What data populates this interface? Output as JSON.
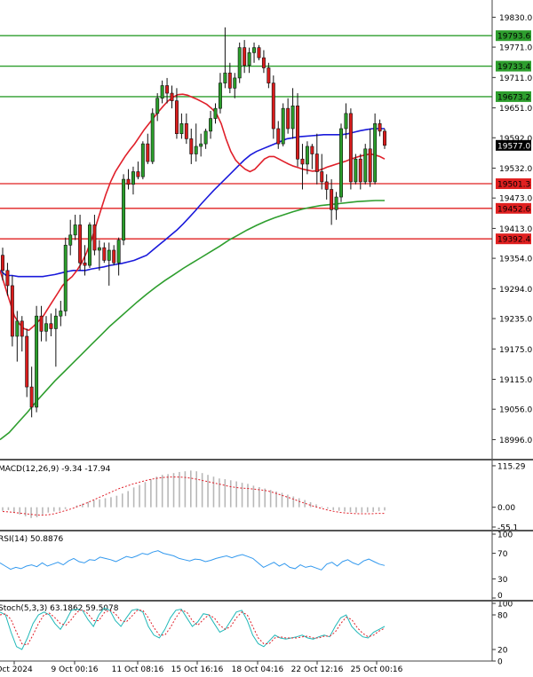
{
  "chart_data": {
    "type": "candlestick",
    "x_tick_labels": [
      "Oct 2024",
      "9 Oct 00:16",
      "11 Oct 08:16",
      "15 Oct 16:16",
      "18 Oct 04:16",
      "22 Oct 12:16",
      "25 Oct 00:16"
    ],
    "main": {
      "ylim": [
        18960,
        19850
      ],
      "y_tick_labels": [
        "19830.0",
        "19771.0",
        "19711.0",
        "19651.0",
        "19592.0",
        "19532.0",
        "19473.0",
        "19413.0",
        "19354.0",
        "19294.0",
        "19235.0",
        "19175.0",
        "19115.0",
        "19056.0",
        "18996.0"
      ],
      "levels": [
        {
          "value": 19793.6,
          "label": "19793.6",
          "color": "#2e9e2e"
        },
        {
          "value": 19733.4,
          "label": "19733.4",
          "color": "#2e9e2e"
        },
        {
          "value": 19673.2,
          "label": "19673.2",
          "color": "#2e9e2e"
        },
        {
          "value": 19501.3,
          "label": "19501.3",
          "color": "#e02020"
        },
        {
          "value": 19452.6,
          "label": "19452.6",
          "color": "#e02020"
        },
        {
          "value": 19392.4,
          "label": "19392.4",
          "color": "#e02020"
        }
      ],
      "current_price": {
        "value": 19577.0,
        "label": "19577.0"
      },
      "candles": [
        [
          19360,
          19375,
          19310,
          19330
        ],
        [
          19330,
          19345,
          19280,
          19300
        ],
        [
          19300,
          19320,
          19180,
          19200
        ],
        [
          19200,
          19250,
          19150,
          19230
        ],
        [
          19230,
          19240,
          19170,
          19200
        ],
        [
          19200,
          19215,
          19080,
          19100
        ],
        [
          19100,
          19140,
          19040,
          19060
        ],
        [
          19060,
          19260,
          19050,
          19240
        ],
        [
          19240,
          19260,
          19190,
          19210
        ],
        [
          19210,
          19240,
          19190,
          19225
        ],
        [
          19225,
          19245,
          19200,
          19215
        ],
        [
          19215,
          19255,
          19140,
          19240
        ],
        [
          19240,
          19270,
          19220,
          19250
        ],
        [
          19250,
          19395,
          19240,
          19380
        ],
        [
          19380,
          19430,
          19360,
          19400
        ],
        [
          19400,
          19440,
          19390,
          19420
        ],
        [
          19420,
          19440,
          19330,
          19345
        ],
        [
          19345,
          19380,
          19320,
          19340
        ],
        [
          19340,
          19425,
          19335,
          19420
        ],
        [
          19420,
          19440,
          19360,
          19370
        ],
        [
          19370,
          19390,
          19330,
          19375
        ],
        [
          19375,
          19385,
          19345,
          19350
        ],
        [
          19350,
          19385,
          19300,
          19370
        ],
        [
          19370,
          19380,
          19340,
          19345
        ],
        [
          19345,
          19395,
          19320,
          19390
        ],
        [
          19390,
          19520,
          19380,
          19510
        ],
        [
          19510,
          19530,
          19490,
          19500
        ],
        [
          19500,
          19535,
          19480,
          19525
        ],
        [
          19525,
          19545,
          19510,
          19515
        ],
        [
          19515,
          19585,
          19510,
          19580
        ],
        [
          19580,
          19600,
          19540,
          19545
        ],
        [
          19545,
          19650,
          19540,
          19640
        ],
        [
          19640,
          19680,
          19625,
          19670
        ],
        [
          19670,
          19705,
          19660,
          19695
        ],
        [
          19695,
          19710,
          19660,
          19680
        ],
        [
          19680,
          19695,
          19650,
          19665
        ],
        [
          19665,
          19690,
          19590,
          19600
        ],
        [
          19600,
          19640,
          19590,
          19620
        ],
        [
          19620,
          19640,
          19580,
          19590
        ],
        [
          19590,
          19610,
          19540,
          19560
        ],
        [
          19560,
          19620,
          19545,
          19575
        ],
        [
          19575,
          19600,
          19555,
          19580
        ],
        [
          19580,
          19610,
          19570,
          19605
        ],
        [
          19605,
          19645,
          19590,
          19630
        ],
        [
          19630,
          19660,
          19620,
          19650
        ],
        [
          19650,
          19720,
          19640,
          19700
        ],
        [
          19700,
          19810,
          19690,
          19720
        ],
        [
          19720,
          19740,
          19680,
          19690
        ],
        [
          19690,
          19720,
          19670,
          19710
        ],
        [
          19710,
          19780,
          19700,
          19770
        ],
        [
          19770,
          19785,
          19720,
          19735
        ],
        [
          19735,
          19770,
          19720,
          19760
        ],
        [
          19760,
          19780,
          19740,
          19770
        ],
        [
          19770,
          19775,
          19745,
          19750
        ],
        [
          19750,
          19765,
          19720,
          19730
        ],
        [
          19730,
          19740,
          19690,
          19700
        ],
        [
          19700,
          19715,
          19590,
          19610
        ],
        [
          19610,
          19625,
          19570,
          19580
        ],
        [
          19580,
          19660,
          19575,
          19650
        ],
        [
          19650,
          19670,
          19600,
          19610
        ],
        [
          19610,
          19690,
          19590,
          19655
        ],
        [
          19655,
          19680,
          19535,
          19550
        ],
        [
          19550,
          19580,
          19490,
          19540
        ],
        [
          19540,
          19585,
          19520,
          19575
        ],
        [
          19575,
          19580,
          19530,
          19560
        ],
        [
          19560,
          19600,
          19500,
          19525
        ],
        [
          19525,
          19560,
          19490,
          19505
        ],
        [
          19505,
          19520,
          19470,
          19490
        ],
        [
          19490,
          19510,
          19420,
          19450
        ],
        [
          19450,
          19485,
          19430,
          19475
        ],
        [
          19475,
          19620,
          19465,
          19610
        ],
        [
          19610,
          19660,
          19590,
          19640
        ],
        [
          19640,
          19650,
          19490,
          19505
        ],
        [
          19505,
          19560,
          19500,
          19550
        ],
        [
          19550,
          19560,
          19490,
          19505
        ],
        [
          19505,
          19580,
          19500,
          19570
        ],
        [
          19570,
          19610,
          19495,
          19505
        ],
        [
          19505,
          19640,
          19500,
          19620
        ],
        [
          19620,
          19628,
          19595,
          19605
        ],
        [
          19605,
          19610,
          19570,
          19577
        ]
      ],
      "ma_fast": [
        19330,
        19300,
        19270,
        19240,
        19225,
        19215,
        19212,
        19220,
        19230,
        19240,
        19255,
        19270,
        19285,
        19300,
        19310,
        19318,
        19330,
        19345,
        19365,
        19390,
        19420,
        19450,
        19480,
        19505,
        19525,
        19540,
        19555,
        19568,
        19580,
        19594,
        19608,
        19620,
        19632,
        19644,
        19655,
        19665,
        19672,
        19677,
        19678,
        19676,
        19672,
        19668,
        19663,
        19658,
        19650,
        19640,
        19620,
        19590,
        19565,
        19548,
        19538,
        19530,
        19525,
        19530,
        19540,
        19550,
        19555,
        19555,
        19550,
        19545,
        19540,
        19536,
        19533,
        19530,
        19528,
        19526,
        19527,
        19530,
        19534,
        19537,
        19540,
        19543,
        19546,
        19550,
        19553,
        19556,
        19558,
        19560,
        19558,
        19555,
        19550
      ],
      "ma_mid": [
        19330,
        19320,
        19320,
        19318,
        19318,
        19318,
        19318,
        19318,
        19320,
        19322,
        19325,
        19328,
        19330,
        19330,
        19330,
        19333,
        19335,
        19337,
        19340,
        19342,
        19344,
        19347,
        19350,
        19355,
        19360,
        19370,
        19380,
        19390,
        19400,
        19410,
        19422,
        19435,
        19448,
        19462,
        19475,
        19488,
        19500,
        19512,
        19524,
        19536,
        19548,
        19558,
        19565,
        19570,
        19575,
        19580,
        19585,
        19590,
        19592,
        19594,
        19595,
        19596,
        19597,
        19598,
        19598,
        19598,
        19598,
        19600,
        19603,
        19606,
        19608,
        19610,
        19610,
        19610
      ],
      "ma_slow": [
        18996,
        19010,
        19030,
        19050,
        19072,
        19092,
        19112,
        19130,
        19148,
        19166,
        19184,
        19202,
        19220,
        19236,
        19252,
        19268,
        19283,
        19297,
        19310,
        19322,
        19334,
        19345,
        19356,
        19367,
        19378,
        19390,
        19400,
        19410,
        19419,
        19427,
        19434,
        19440,
        19446,
        19451,
        19455,
        19458,
        19460,
        19462,
        19464,
        19466,
        19467,
        19468,
        19468
      ]
    },
    "macd": {
      "label": "MACD(12,26,9) -9.34 -17.94",
      "y_tick_labels": [
        "115.29",
        "0.00",
        "-55.1"
      ],
      "ylim": [
        -60,
        125
      ],
      "histogram": [
        -10,
        -8,
        -15,
        -20,
        -25,
        -30,
        -28,
        -20,
        -15,
        -12,
        -10,
        -5,
        0,
        5,
        10,
        15,
        20,
        22,
        25,
        28,
        32,
        38,
        45,
        55,
        62,
        70,
        78,
        85,
        90,
        92,
        95,
        98,
        100,
        102,
        100,
        95,
        90,
        85,
        80,
        78,
        75,
        72,
        68,
        65,
        60,
        56,
        52,
        48,
        44,
        40,
        35,
        30,
        25,
        20,
        14,
        8,
        2,
        -4,
        -8,
        -10,
        -12,
        -14,
        -15,
        -15,
        -14,
        -13,
        -11,
        -9
      ],
      "signal": [
        -12,
        -13,
        -15,
        -17,
        -19,
        -21,
        -22,
        -21,
        -18,
        -13,
        -8,
        -2,
        5,
        12,
        20,
        28,
        36,
        44,
        52,
        58,
        64,
        69,
        74,
        78,
        81,
        83,
        84,
        84,
        83,
        81,
        78,
        74,
        70,
        66,
        62,
        58,
        55,
        53,
        52,
        50,
        48,
        45,
        40,
        34,
        28,
        22,
        15,
        9,
        3,
        -2,
        -7,
        -11,
        -14,
        -16,
        -17,
        -18,
        -18,
        -18,
        -17,
        -17
      ]
    },
    "rsi": {
      "label": "RSI(14) 50.8876",
      "y_tick_labels": [
        "100",
        "70",
        "30",
        "0"
      ],
      "ylim": [
        0,
        100
      ],
      "values": [
        55,
        50,
        45,
        48,
        46,
        50,
        52,
        49,
        55,
        50,
        53,
        56,
        52,
        58,
        62,
        57,
        55,
        60,
        59,
        64,
        62,
        60,
        57,
        61,
        65,
        63,
        66,
        70,
        68,
        72,
        74,
        70,
        68,
        66,
        62,
        60,
        58,
        61,
        60,
        57,
        59,
        62,
        64,
        66,
        63,
        66,
        68,
        65,
        62,
        55,
        48,
        52,
        56,
        50,
        54,
        48,
        46,
        52,
        48,
        50,
        47,
        44,
        53,
        56,
        50,
        57,
        60,
        55,
        52,
        58,
        61,
        57,
        53,
        51
      ]
    },
    "stoch": {
      "label": "Stoch(5,3,3) 63.1862 59.5078",
      "y_tick_labels": [
        "100",
        "80",
        "20",
        "0"
      ],
      "ylim": [
        0,
        100
      ],
      "k": [
        85,
        80,
        50,
        25,
        20,
        40,
        65,
        80,
        85,
        80,
        65,
        55,
        70,
        88,
        90,
        88,
        72,
        60,
        80,
        92,
        88,
        70,
        60,
        75,
        88,
        90,
        85,
        60,
        45,
        40,
        55,
        75,
        88,
        90,
        75,
        60,
        68,
        82,
        80,
        65,
        50,
        55,
        70,
        85,
        88,
        70,
        45,
        30,
        25,
        35,
        45,
        40,
        38,
        40,
        42,
        45,
        40,
        38,
        42,
        45,
        42,
        60,
        75,
        80,
        60,
        50,
        42,
        40,
        50,
        55,
        60
      ],
      "d": [
        80,
        82,
        72,
        50,
        30,
        28,
        45,
        65,
        80,
        83,
        75,
        65,
        62,
        72,
        85,
        89,
        82,
        70,
        70,
        84,
        88,
        82,
        70,
        68,
        78,
        88,
        88,
        75,
        58,
        45,
        45,
        58,
        75,
        88,
        85,
        70,
        62,
        72,
        80,
        75,
        62,
        55,
        60,
        75,
        85,
        80,
        60,
        40,
        30,
        30,
        40,
        42,
        40,
        40,
        40,
        42,
        43,
        40,
        40,
        43,
        43,
        50,
        65,
        76,
        72,
        58,
        48,
        42,
        45,
        52,
        57
      ]
    }
  }
}
